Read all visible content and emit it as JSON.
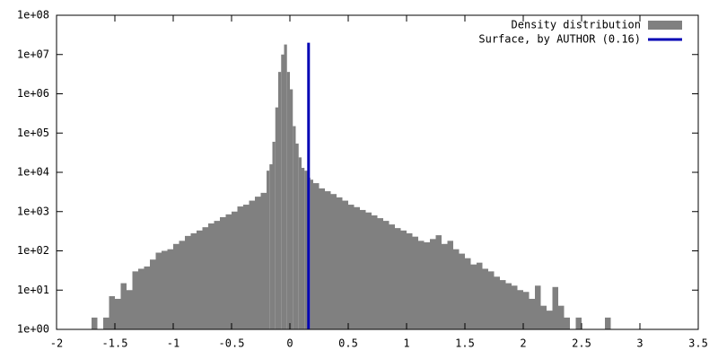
{
  "chart_data": {
    "type": "histogram",
    "log_y": true,
    "legend": "top-right",
    "bins": [
      -1.7,
      -1.65,
      -1.6,
      -1.55,
      -1.5,
      -1.45,
      -1.4,
      -1.35,
      -1.3,
      -1.25,
      -1.2,
      -1.15,
      -1.1,
      -1.05,
      -1.0,
      -0.95,
      -0.9,
      -0.85,
      -0.8,
      -0.75,
      -0.7,
      -0.65,
      -0.6,
      -0.55,
      -0.5,
      -0.45,
      -0.4,
      -0.35,
      -0.3,
      -0.25,
      -0.2,
      -0.175,
      -0.15,
      -0.125,
      -0.1,
      -0.075,
      -0.05,
      -0.025,
      0,
      0.025,
      0.05,
      0.075,
      0.1,
      0.125,
      0.15,
      0.175,
      0.2,
      0.25,
      0.3,
      0.35,
      0.4,
      0.45,
      0.5,
      0.55,
      0.6,
      0.65,
      0.7,
      0.75,
      0.8,
      0.85,
      0.9,
      0.95,
      1.0,
      1.05,
      1.1,
      1.15,
      1.2,
      1.25,
      1.3,
      1.35,
      1.4,
      1.45,
      1.5,
      1.55,
      1.6,
      1.65,
      1.7,
      1.75,
      1.8,
      1.85,
      1.9,
      1.95,
      2.0,
      2.05,
      2.1,
      2.15,
      2.2,
      2.25,
      2.3,
      2.35,
      2.4,
      2.45,
      2.5,
      2.55,
      2.6,
      2.65,
      2.7,
      2.75
    ],
    "series": [
      {
        "name": "Density distribution",
        "color": "#808080",
        "values": [
          2,
          0,
          2,
          7,
          6,
          15,
          10,
          30,
          35,
          40,
          60,
          90,
          100,
          110,
          150,
          180,
          240,
          280,
          330,
          400,
          500,
          580,
          720,
          850,
          1000,
          1350,
          1500,
          1900,
          2400,
          3000,
          11000,
          16000,
          60000,
          450000,
          3600000,
          10000000,
          18000000,
          3600000,
          1300000,
          150000,
          54000,
          24000,
          13000,
          11000,
          7300,
          6500,
          5300,
          3900,
          3300,
          2800,
          2300,
          1900,
          1500,
          1300,
          1100,
          950,
          800,
          680,
          580,
          470,
          380,
          330,
          280,
          230,
          180,
          165,
          200,
          250,
          150,
          180,
          110,
          85,
          65,
          45,
          50,
          35,
          30,
          22,
          18,
          15,
          13,
          10,
          9,
          6,
          13,
          4,
          3,
          12,
          4,
          2,
          0,
          2,
          0,
          0,
          0,
          0,
          2
        ]
      }
    ],
    "lines": [
      {
        "name": "Surface, by AUTHOR (0.16)",
        "color": "#0000b4",
        "x": [
          0.16,
          0.16
        ],
        "values": [
          1,
          20000000
        ]
      }
    ],
    "xlim": [
      -2,
      3.5
    ],
    "xticks": [
      -2,
      -1.5,
      -1,
      -0.5,
      0,
      0.5,
      1,
      1.5,
      2,
      2.5,
      3,
      3.5
    ],
    "ylim": [
      1,
      100000000
    ],
    "yticks": [
      {
        "value": 1,
        "label": "1e+00"
      },
      {
        "value": 10,
        "label": "1e+01"
      },
      {
        "value": 100,
        "label": "1e+02"
      },
      {
        "value": 1000,
        "label": "1e+03"
      },
      {
        "value": 10000,
        "label": "1e+04"
      },
      {
        "value": 100000,
        "label": "1e+05"
      },
      {
        "value": 1000000,
        "label": "1e+06"
      },
      {
        "value": 10000000,
        "label": "1e+07"
      },
      {
        "value": 100000000,
        "label": "1e+08"
      }
    ]
  }
}
